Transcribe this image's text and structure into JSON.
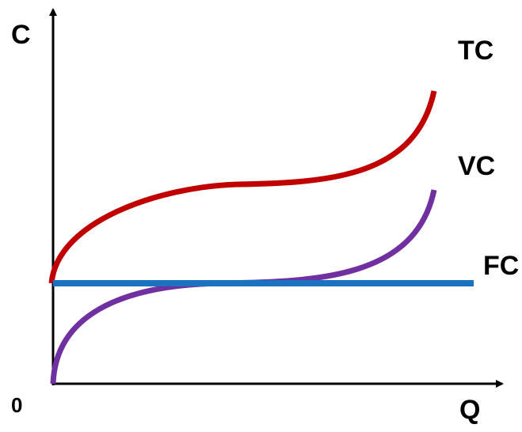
{
  "axes": {
    "y_label": "C",
    "x_label": "Q",
    "origin": "0"
  },
  "curves": [
    {
      "label": "TC"
    },
    {
      "label": "VC"
    },
    {
      "label": "FC"
    }
  ]
}
